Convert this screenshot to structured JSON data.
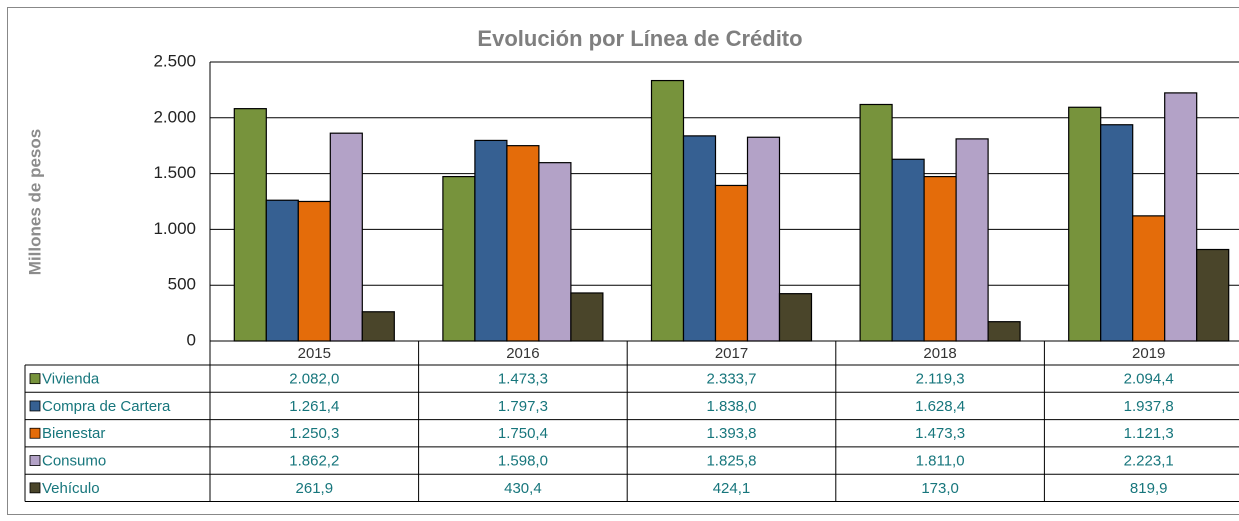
{
  "chart_data": {
    "type": "bar",
    "title": "Evolución por Línea de Crédito",
    "y_label": "Millones de pesos",
    "categories": [
      "2015",
      "2016",
      "2017",
      "2018",
      "2019"
    ],
    "series": [
      {
        "name": "Vivienda",
        "color": "#77933c",
        "values": [
          2082.0,
          1473.3,
          2333.7,
          2119.3,
          2094.4
        ],
        "value_labels": [
          "2.082,0",
          "1.473,3",
          "2.333,7",
          "2.119,3",
          "2.094,4"
        ]
      },
      {
        "name": "Compra de Cartera",
        "color": "#366092",
        "values": [
          1261.4,
          1797.3,
          1838.0,
          1628.4,
          1937.8
        ],
        "value_labels": [
          "1.261,4",
          "1.797,3",
          "1.838,0",
          "1.628,4",
          "1.937,8"
        ]
      },
      {
        "name": "Bienestar",
        "color": "#e46c0a",
        "values": [
          1250.3,
          1750.4,
          1393.8,
          1473.3,
          1121.3
        ],
        "value_labels": [
          "1.250,3",
          "1.750,4",
          "1.393,8",
          "1.473,3",
          "1.121,3"
        ]
      },
      {
        "name": "Consumo",
        "color": "#b3a2c7",
        "values": [
          1862.2,
          1598.0,
          1825.8,
          1811.0,
          2223.1
        ],
        "value_labels": [
          "1.862,2",
          "1.598,0",
          "1.825,8",
          "1.811,0",
          "2.223,1"
        ]
      },
      {
        "name": "Vehículo",
        "color": "#4a452a",
        "values": [
          261.9,
          430.4,
          424.1,
          173.0,
          819.9
        ],
        "value_labels": [
          "261,9",
          "430,4",
          "424,1",
          "173,0",
          "819,9"
        ]
      }
    ],
    "ylim": [
      0,
      2500
    ],
    "yticks": [
      0,
      500,
      {
        "value": 1000,
        "label": "1.000"
      },
      {
        "value": 1500,
        "label": "1.500"
      },
      {
        "value": 2000,
        "label": "2.000"
      },
      {
        "value": 2500,
        "label": "2.500"
      }
    ],
    "grid": true
  }
}
